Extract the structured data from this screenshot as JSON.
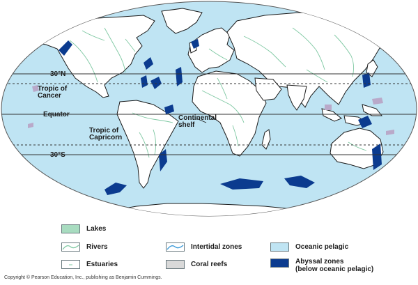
{
  "map": {
    "latitude_lines": {
      "north_30": "30°N",
      "tropic_cancer": "Tropic of\nCancer",
      "equator": "Equator",
      "tropic_capricorn": "Tropic of\nCapricorn",
      "south_30": "30°S"
    },
    "annotations": {
      "continental_shelf": "Continental\nshelf"
    },
    "colors": {
      "ocean": "#bfe4f3",
      "land": "#ffffff",
      "coastline": "#1a1a1a",
      "rivers": "#7ec8a2",
      "abyssal": "#0b3b8f",
      "coral": "#b9a9c9"
    }
  },
  "legend": {
    "lakes": "Lakes",
    "rivers": "Rivers",
    "estuaries": "Estuaries",
    "intertidal": "Intertidal zones",
    "coral_reefs": "Coral reefs",
    "oceanic_pelagic": "Oceanic pelagic",
    "abyssal": "Abyssal zones\n(below oceanic pelagic)"
  },
  "copyright": "Copyright © Pearson Education, Inc., publishing as Benjamin Cummings."
}
